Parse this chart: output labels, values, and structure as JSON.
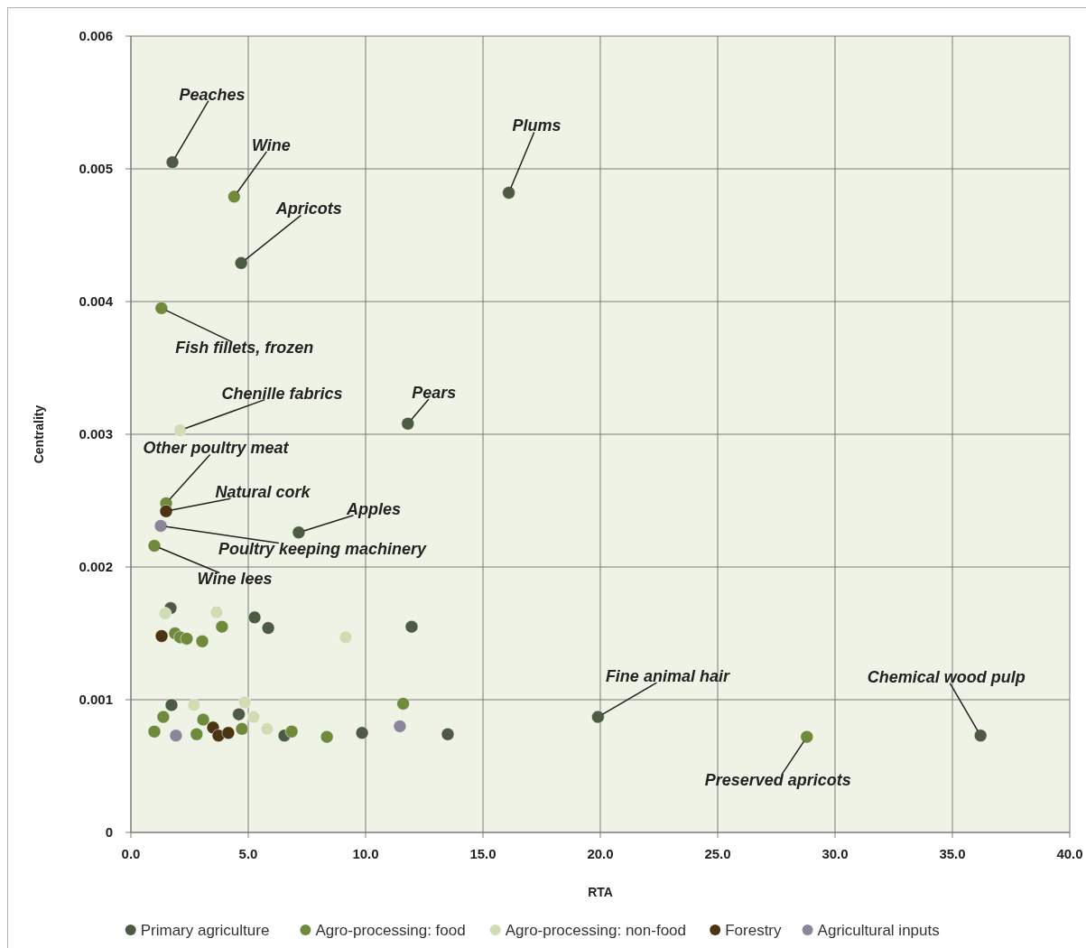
{
  "chart_data": {
    "type": "scatter",
    "xlabel": "RTA",
    "ylabel": "Centrality",
    "xlim": [
      0,
      40
    ],
    "xticks": [
      {
        "value": 0,
        "label": "0.0"
      },
      {
        "value": 5,
        "label": "5.0"
      },
      {
        "value": 10,
        "label": "10.0"
      },
      {
        "value": 15,
        "label": "15.0"
      },
      {
        "value": 20,
        "label": "20.0"
      },
      {
        "value": 25,
        "label": "25.0"
      },
      {
        "value": 30,
        "label": "30.0"
      },
      {
        "value": 35,
        "label": "35.0"
      },
      {
        "value": 40,
        "label": "40.0"
      }
    ],
    "ylim": [
      0,
      0.006
    ],
    "yticks": [
      0,
      0.001,
      0.002,
      0.003,
      0.004,
      0.005,
      0.006
    ],
    "grid": true,
    "legend": "bottom",
    "marker": "circle",
    "series": [
      {
        "name": "Primary agriculture",
        "color": "#4d5a44",
        "x": [
          1.77,
          4.7,
          16.1,
          7.15,
          11.8,
          19.9,
          36.2,
          1.69,
          5.27,
          5.85,
          11.96,
          1.73,
          4.6,
          6.54,
          9.85,
          13.5
        ],
        "values": [
          0.00505,
          0.00429,
          0.00482,
          0.00226,
          0.00308,
          0.00087,
          0.00073,
          0.00169,
          0.00162,
          0.00154,
          0.00155,
          0.00096,
          0.00089,
          0.00073,
          0.00075,
          0.00074
        ]
      },
      {
        "name": "Agro-processing: food",
        "color": "#6f8a3c",
        "x": [
          4.4,
          1.3,
          1.5,
          1.0,
          28.8,
          1.88,
          2.1,
          2.38,
          3.04,
          3.88,
          1.38,
          1.0,
          2.8,
          3.08,
          4.73,
          6.85,
          8.35,
          11.6
        ],
        "values": [
          0.00479,
          0.00395,
          0.00248,
          0.00216,
          0.00072,
          0.0015,
          0.00147,
          0.00146,
          0.00144,
          0.00155,
          0.00087,
          0.00076,
          0.00074,
          0.00085,
          0.00078,
          0.00076,
          0.00072,
          0.00097
        ]
      },
      {
        "name": "Agro-processing: non-food",
        "color": "#cfdcb4",
        "x": [
          2.1,
          1.46,
          3.65,
          9.15,
          2.69,
          4.85,
          5.23,
          5.8
        ],
        "values": [
          0.00303,
          0.00165,
          0.00166,
          0.00147,
          0.00096,
          0.00098,
          0.00087,
          0.00078
        ]
      },
      {
        "name": "Forestry",
        "color": "#4a3412",
        "x": [
          1.5,
          1.31,
          3.5,
          3.73,
          4.15
        ],
        "values": [
          0.00242,
          0.00148,
          0.00079,
          0.00073,
          0.00075
        ]
      },
      {
        "name": "Agricultural inputs",
        "color": "#8c8499",
        "x": [
          1.27,
          1.92,
          11.46
        ],
        "values": [
          0.00231,
          0.00073,
          0.0008
        ]
      }
    ],
    "annotations": [
      {
        "text": "Peaches",
        "x": 1.77,
        "y": 0.00505
      },
      {
        "text": "Wine",
        "x": 4.4,
        "y": 0.00479
      },
      {
        "text": "Apricots",
        "x": 4.7,
        "y": 0.00429
      },
      {
        "text": "Plums",
        "x": 16.1,
        "y": 0.00482
      },
      {
        "text": "Fish fillets, frozen",
        "x": 1.3,
        "y": 0.00395
      },
      {
        "text": "Chenille fabrics",
        "x": 2.1,
        "y": 0.00303
      },
      {
        "text": "Other poultry meat",
        "x": 1.5,
        "y": 0.00248
      },
      {
        "text": "Natural cork",
        "x": 1.5,
        "y": 0.00242
      },
      {
        "text": "Poultry keeping machinery",
        "x": 1.27,
        "y": 0.00231
      },
      {
        "text": "Wine lees",
        "x": 1.0,
        "y": 0.00216
      },
      {
        "text": "Apples",
        "x": 7.15,
        "y": 0.00226
      },
      {
        "text": "Pears",
        "x": 11.8,
        "y": 0.00308
      },
      {
        "text": "Fine animal hair",
        "x": 19.9,
        "y": 0.00087
      },
      {
        "text": "Preserved apricots",
        "x": 28.8,
        "y": 0.00072
      },
      {
        "text": "Chemical wood pulp",
        "x": 36.2,
        "y": 0.00073
      }
    ]
  }
}
